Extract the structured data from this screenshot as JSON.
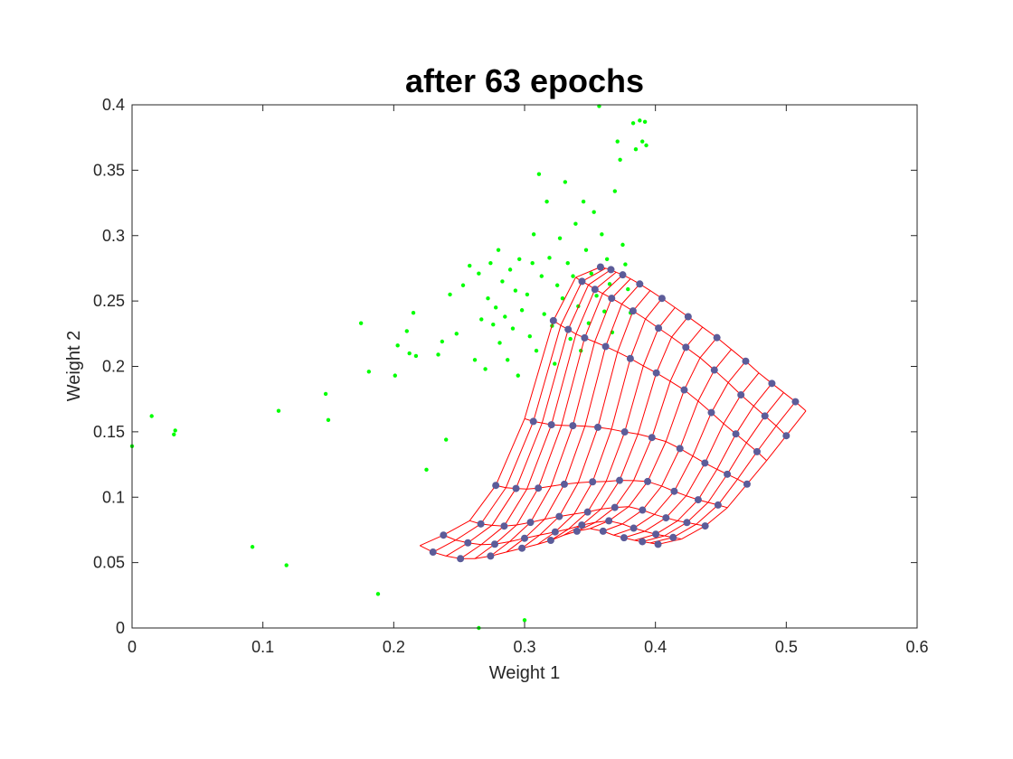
{
  "chart_data": {
    "type": "scatter",
    "title": "after 63 epochs",
    "xlabel": "Weight 1",
    "ylabel": "Weight 2",
    "xlim": [
      0,
      0.6
    ],
    "ylim": [
      0,
      0.4
    ],
    "x_ticks": [
      "0",
      "0.1",
      "0.2",
      "0.3",
      "0.4",
      "0.5",
      "0.6"
    ],
    "y_ticks": [
      "0",
      "0.05",
      "0.1",
      "0.15",
      "0.2",
      "0.25",
      "0.3",
      "0.35",
      "0.4"
    ],
    "grid": false,
    "box": true,
    "colors": {
      "data_points": "#00ff00",
      "som_mesh": "#ff0000",
      "som_neurons": "#5c5c99"
    },
    "series": [
      {
        "kind": "input_data",
        "points": [
          [
            0.0,
            0.139
          ],
          [
            0.015,
            0.162
          ],
          [
            0.032,
            0.148
          ],
          [
            0.033,
            0.151
          ],
          [
            0.092,
            0.062
          ],
          [
            0.112,
            0.166
          ],
          [
            0.118,
            0.048
          ],
          [
            0.148,
            0.179
          ],
          [
            0.15,
            0.159
          ],
          [
            0.175,
            0.233
          ],
          [
            0.181,
            0.196
          ],
          [
            0.188,
            0.026
          ],
          [
            0.201,
            0.193
          ],
          [
            0.203,
            0.216
          ],
          [
            0.21,
            0.227
          ],
          [
            0.212,
            0.21
          ],
          [
            0.215,
            0.241
          ],
          [
            0.217,
            0.208
          ],
          [
            0.225,
            0.121
          ],
          [
            0.234,
            0.209
          ],
          [
            0.237,
            0.219
          ],
          [
            0.24,
            0.144
          ],
          [
            0.243,
            0.255
          ],
          [
            0.248,
            0.225
          ],
          [
            0.253,
            0.262
          ],
          [
            0.258,
            0.277
          ],
          [
            0.262,
            0.205
          ],
          [
            0.265,
            0.271
          ],
          [
            0.267,
            0.236
          ],
          [
            0.27,
            0.198
          ],
          [
            0.272,
            0.252
          ],
          [
            0.274,
            0.279
          ],
          [
            0.276,
            0.232
          ],
          [
            0.278,
            0.245
          ],
          [
            0.28,
            0.289
          ],
          [
            0.281,
            0.218
          ],
          [
            0.283,
            0.265
          ],
          [
            0.285,
            0.238
          ],
          [
            0.287,
            0.205
          ],
          [
            0.289,
            0.274
          ],
          [
            0.291,
            0.229
          ],
          [
            0.293,
            0.258
          ],
          [
            0.295,
            0.193
          ],
          [
            0.296,
            0.282
          ],
          [
            0.298,
            0.243
          ],
          [
            0.3,
            0.006
          ],
          [
            0.302,
            0.255
          ],
          [
            0.304,
            0.223
          ],
          [
            0.306,
            0.279
          ],
          [
            0.307,
            0.301
          ],
          [
            0.309,
            0.212
          ],
          [
            0.311,
            0.347
          ],
          [
            0.313,
            0.269
          ],
          [
            0.315,
            0.24
          ],
          [
            0.317,
            0.326
          ],
          [
            0.319,
            0.283
          ],
          [
            0.321,
            0.231
          ],
          [
            0.323,
            0.202
          ],
          [
            0.325,
            0.262
          ],
          [
            0.327,
            0.298
          ],
          [
            0.329,
            0.252
          ],
          [
            0.331,
            0.341
          ],
          [
            0.333,
            0.279
          ],
          [
            0.335,
            0.221
          ],
          [
            0.337,
            0.269
          ],
          [
            0.339,
            0.309
          ],
          [
            0.341,
            0.246
          ],
          [
            0.343,
            0.212
          ],
          [
            0.345,
            0.326
          ],
          [
            0.347,
            0.289
          ],
          [
            0.349,
            0.233
          ],
          [
            0.351,
            0.271
          ],
          [
            0.353,
            0.318
          ],
          [
            0.355,
            0.254
          ],
          [
            0.357,
            0.399
          ],
          [
            0.359,
            0.301
          ],
          [
            0.361,
            0.242
          ],
          [
            0.363,
            0.282
          ],
          [
            0.365,
            0.263
          ],
          [
            0.367,
            0.226
          ],
          [
            0.369,
            0.334
          ],
          [
            0.371,
            0.372
          ],
          [
            0.373,
            0.358
          ],
          [
            0.375,
            0.293
          ],
          [
            0.377,
            0.278
          ],
          [
            0.379,
            0.259
          ],
          [
            0.381,
            0.241
          ],
          [
            0.383,
            0.386
          ],
          [
            0.385,
            0.366
          ],
          [
            0.388,
            0.388
          ],
          [
            0.39,
            0.372
          ],
          [
            0.392,
            0.387
          ],
          [
            0.393,
            0.369
          ],
          [
            0.265,
            0.0
          ]
        ]
      },
      {
        "kind": "som_grid",
        "rows": 8,
        "cols": 20,
        "corners": {
          "top_left": [
            0.358,
            0.276
          ],
          "top_right": [
            0.515,
            0.166
          ],
          "bottom_left": [
            0.22,
            0.063
          ],
          "bottom_right": [
            0.402,
            0.064
          ]
        },
        "left_edge": [
          [
            0.358,
            0.276
          ],
          [
            0.339,
            0.268
          ],
          [
            0.322,
            0.235
          ],
          [
            0.3,
            0.16
          ],
          [
            0.278,
            0.109
          ],
          [
            0.258,
            0.082
          ],
          [
            0.238,
            0.071
          ],
          [
            0.22,
            0.063
          ]
        ],
        "bottom_edge": [
          [
            0.22,
            0.063
          ],
          [
            0.23,
            0.058
          ],
          [
            0.24,
            0.055
          ],
          [
            0.251,
            0.053
          ],
          [
            0.262,
            0.053
          ],
          [
            0.274,
            0.055
          ],
          [
            0.286,
            0.058
          ],
          [
            0.298,
            0.061
          ],
          [
            0.31,
            0.064
          ],
          [
            0.32,
            0.067
          ],
          [
            0.33,
            0.071
          ],
          [
            0.34,
            0.074
          ],
          [
            0.35,
            0.076
          ],
          [
            0.36,
            0.074
          ],
          [
            0.368,
            0.071
          ],
          [
            0.376,
            0.069
          ],
          [
            0.384,
            0.067
          ],
          [
            0.39,
            0.066
          ],
          [
            0.396,
            0.065
          ],
          [
            0.402,
            0.064
          ]
        ],
        "right_edge": [
          [
            0.515,
            0.166
          ],
          [
            0.5,
            0.147
          ],
          [
            0.485,
            0.128
          ],
          [
            0.47,
            0.11
          ],
          [
            0.455,
            0.092
          ],
          [
            0.438,
            0.078
          ],
          [
            0.42,
            0.068
          ],
          [
            0.402,
            0.064
          ]
        ],
        "top_edge": [
          [
            0.358,
            0.276
          ],
          [
            0.362,
            0.275
          ],
          [
            0.366,
            0.274
          ],
          [
            0.37,
            0.272
          ],
          [
            0.375,
            0.27
          ],
          [
            0.381,
            0.267
          ],
          [
            0.388,
            0.263
          ],
          [
            0.396,
            0.258
          ],
          [
            0.405,
            0.252
          ],
          [
            0.415,
            0.245
          ],
          [
            0.425,
            0.238
          ],
          [
            0.436,
            0.23
          ],
          [
            0.447,
            0.222
          ],
          [
            0.458,
            0.213
          ],
          [
            0.469,
            0.204
          ],
          [
            0.479,
            0.195
          ],
          [
            0.489,
            0.187
          ],
          [
            0.498,
            0.18
          ],
          [
            0.507,
            0.173
          ],
          [
            0.515,
            0.166
          ]
        ]
      }
    ]
  }
}
